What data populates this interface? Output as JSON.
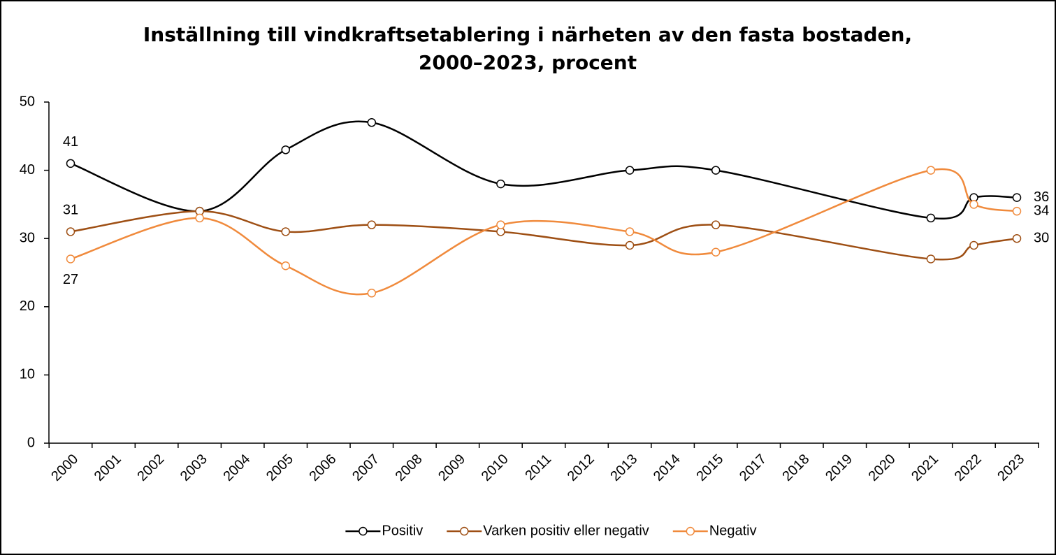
{
  "chart_data": {
    "type": "line",
    "title": "Inställning till vindkraftsetablering i närheten av den fasta bostaden, 2000–2023, procent",
    "categories": [
      "2000",
      "2001",
      "2002",
      "2003",
      "2004",
      "2005",
      "2006",
      "2007",
      "2008",
      "2009",
      "2010",
      "2011",
      "2012",
      "2013",
      "2014",
      "2015",
      "2017",
      "2018",
      "2019",
      "2020",
      "2021",
      "2022",
      "2023"
    ],
    "series": [
      {
        "name": "Positiv",
        "color": "#000000",
        "x": [
          "2000",
          "2003",
          "2005",
          "2007",
          "2010",
          "2013",
          "2015",
          "2021",
          "2022",
          "2023"
        ],
        "values": [
          41,
          34,
          43,
          47,
          38,
          40,
          40,
          33,
          36,
          36
        ],
        "value_labels": [
          "41",
          null,
          null,
          null,
          null,
          null,
          null,
          null,
          null,
          "36"
        ]
      },
      {
        "name": "Varken positiv eller negativ",
        "color": "#9e4f14",
        "x": [
          "2000",
          "2003",
          "2005",
          "2007",
          "2010",
          "2013",
          "2015",
          "2021",
          "2022",
          "2023"
        ],
        "values": [
          31,
          34,
          31,
          32,
          31,
          29,
          32,
          27,
          29,
          30
        ],
        "value_labels": [
          "31",
          null,
          null,
          null,
          null,
          null,
          null,
          null,
          null,
          "30"
        ]
      },
      {
        "name": "Negativ",
        "color": "#f08a3c",
        "x": [
          "2000",
          "2003",
          "2005",
          "2007",
          "2010",
          "2013",
          "2015",
          "2021",
          "2022",
          "2023"
        ],
        "values": [
          27,
          33,
          26,
          22,
          32,
          31,
          28,
          40,
          35,
          34
        ],
        "value_labels": [
          "27",
          null,
          null,
          null,
          null,
          null,
          null,
          null,
          null,
          "34"
        ]
      }
    ],
    "ylim": [
      0,
      50
    ],
    "yticks": [
      0,
      10,
      20,
      30,
      40,
      50
    ],
    "grid": false,
    "legend": "bottom"
  }
}
